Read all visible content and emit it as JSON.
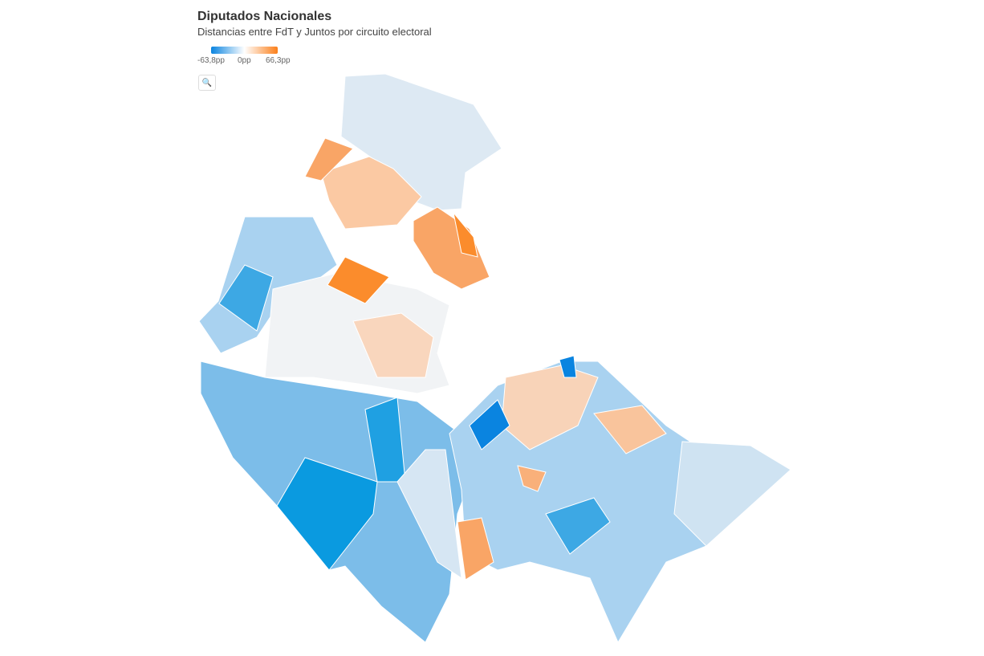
{
  "header": {
    "title": "Diputados Nacionales",
    "subtitle": "Distancias entre FdT y Juntos por circuito electoral"
  },
  "legend": {
    "min_label": "-63,8pp",
    "mid_label": "0pp",
    "max_label": "66,3pp",
    "min_color": "#0a84e0",
    "max_color": "#fb7f1a"
  },
  "controls": {
    "zoom_icon": "search-icon"
  }
}
